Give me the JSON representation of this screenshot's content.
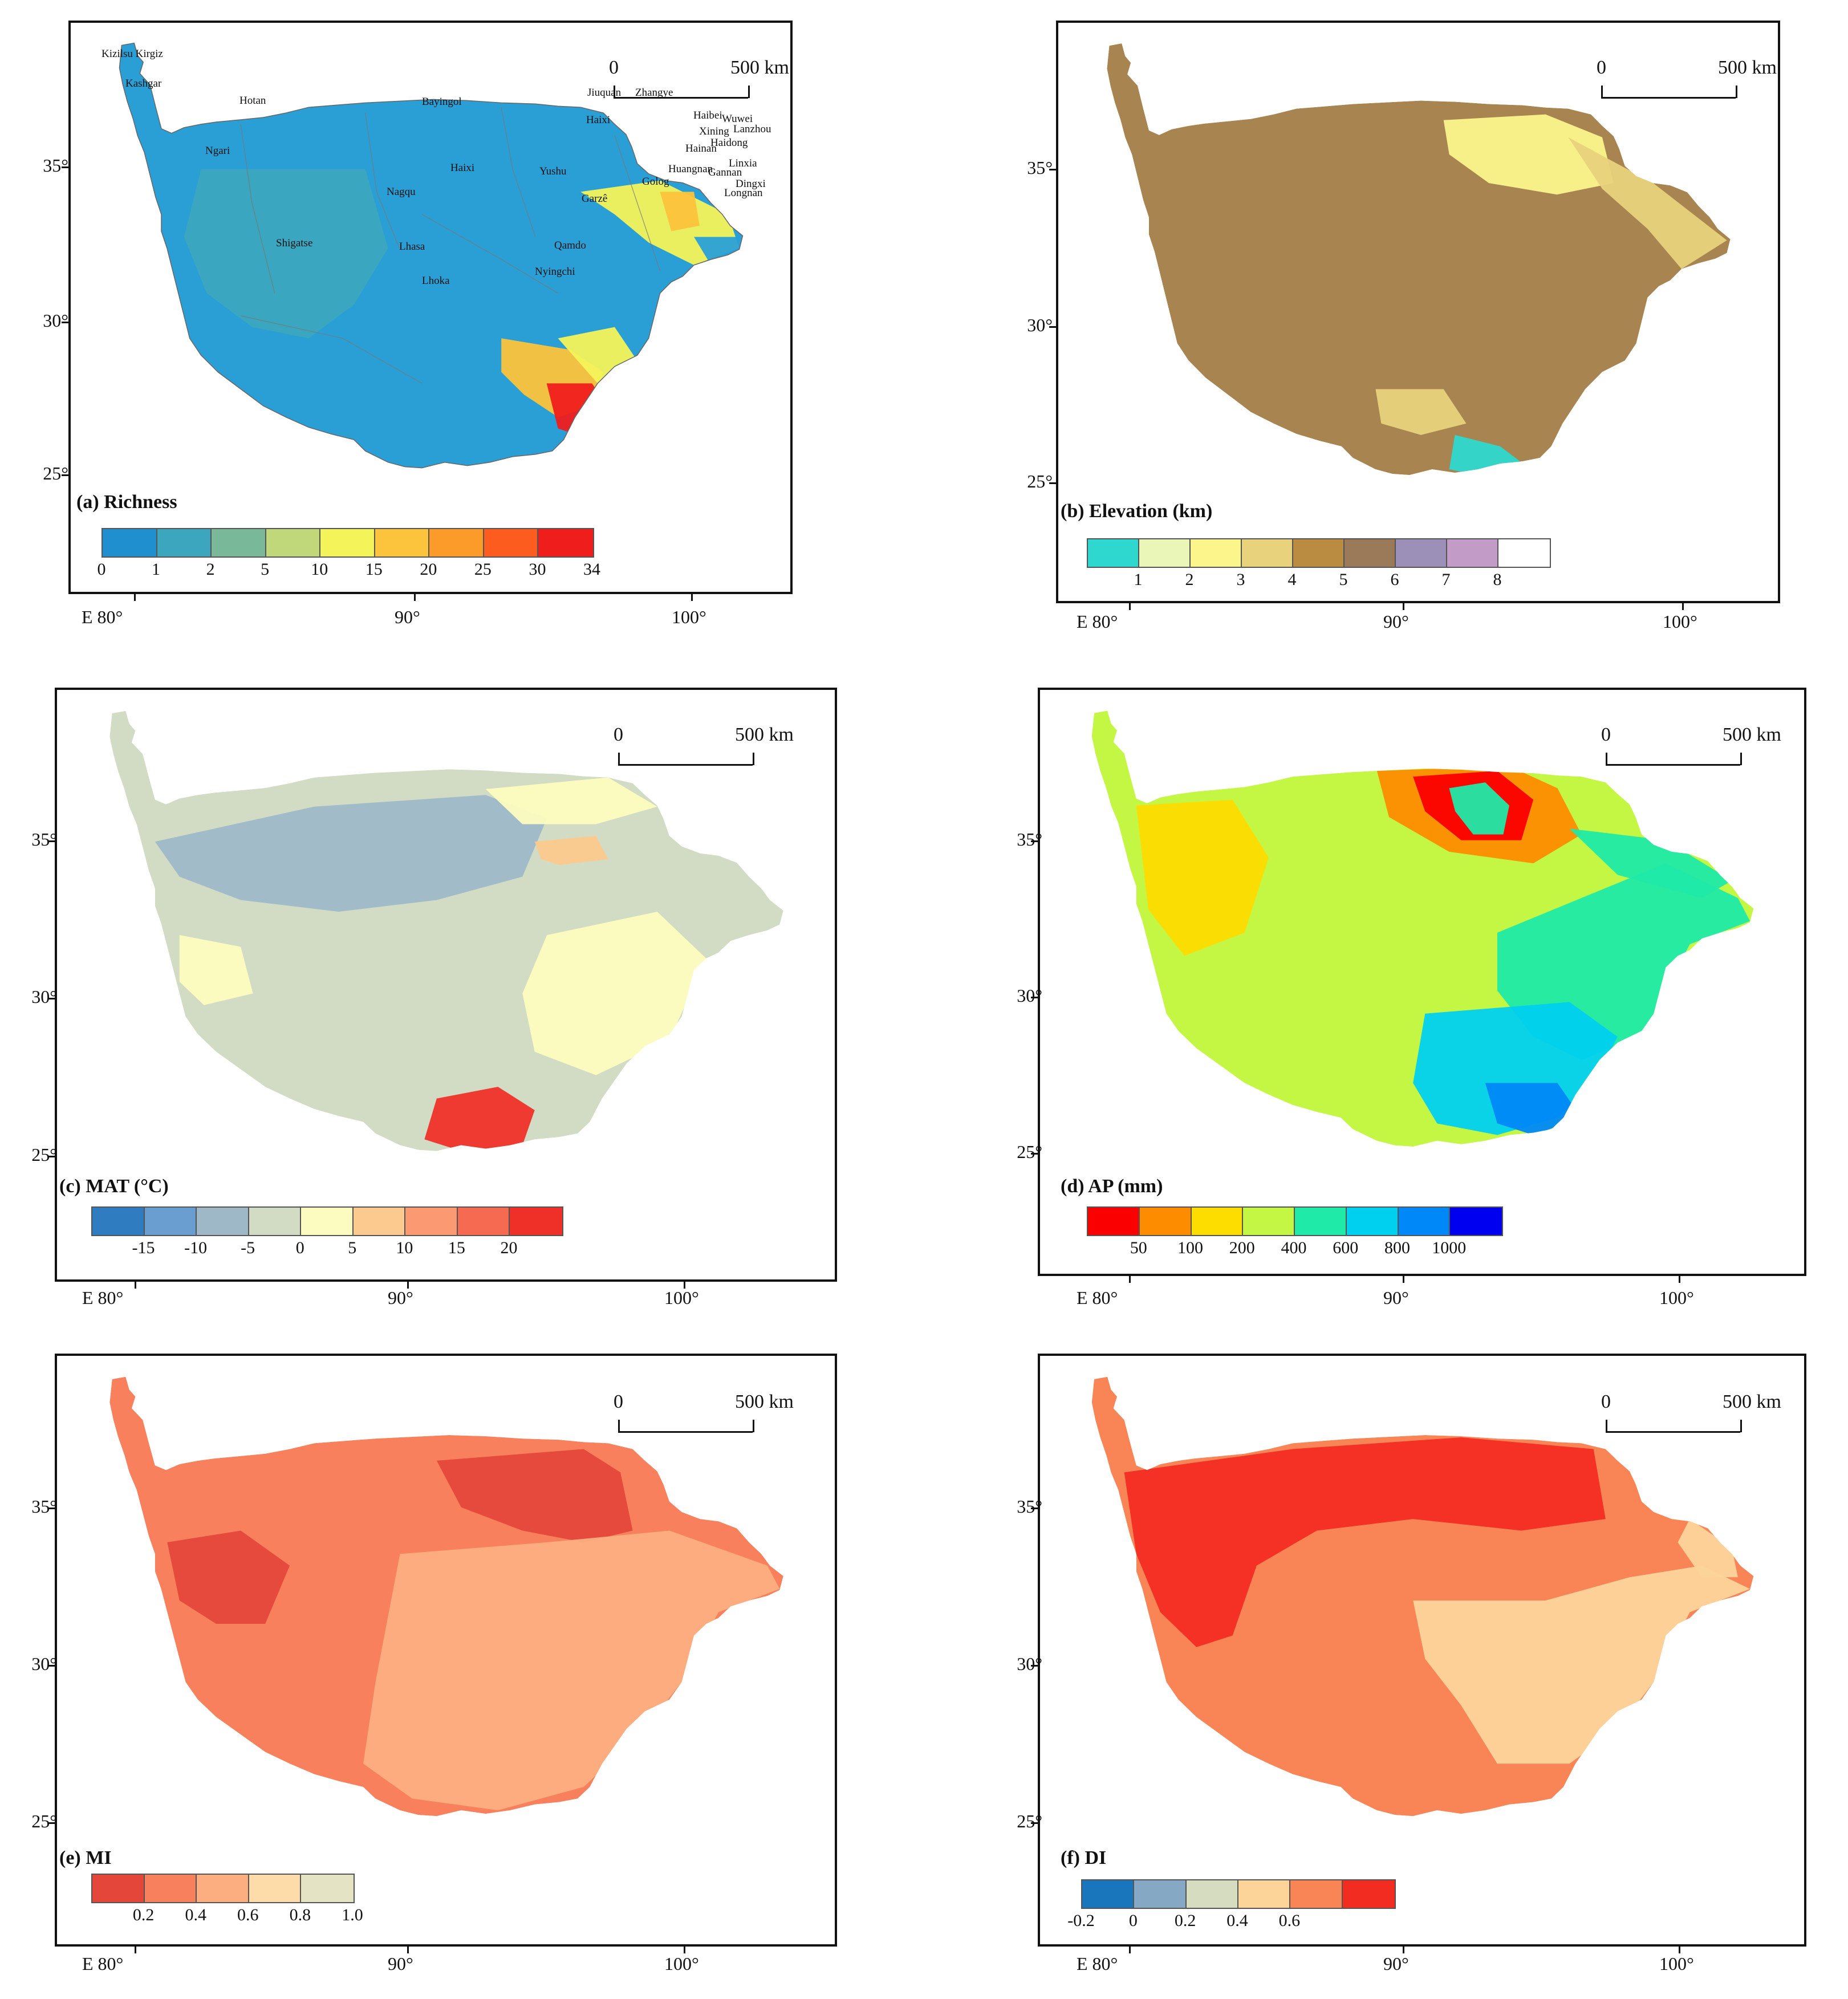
{
  "scale_bar": {
    "zero": "0",
    "distance": "500 km"
  },
  "lat_labels": [
    "35°",
    "30°",
    "25°"
  ],
  "lon_labels": [
    "E 80°",
    "90°",
    "100°"
  ],
  "panels": [
    {
      "id": "a",
      "title": "(a) Richness",
      "legend_colors": [
        "#1f8fd0",
        "#3ca6be",
        "#7ab89a",
        "#c0d87a",
        "#f4f35a",
        "#fcc33c",
        "#fc9a2a",
        "#fc5c1e",
        "#f01d1d"
      ],
      "legend_labels": [
        "0",
        "1",
        "2",
        "5",
        "10",
        "15",
        "20",
        "25",
        "30",
        "34"
      ],
      "map_colors": [
        "#2a9fd6",
        "#3ca6be",
        "#7ab89a",
        "#c0d87a",
        "#f4f35a",
        "#fcc33c",
        "#fc5c1e",
        "#f01d1d"
      ],
      "place_labels": [
        "Kizilsu Kirgiz",
        "Kashgar",
        "Hotan",
        "Bayingol",
        "Jiuquan",
        "Zhangye",
        "Haixi",
        "Haibei",
        "Wuwei",
        "Lanzhou",
        "Xining",
        "Haidong",
        "Hainan",
        "Linxia",
        "Huangnan",
        "Gannan",
        "Dingxi",
        "Longnan",
        "Golog",
        "Ngari",
        "Haixi",
        "Yushu",
        "Nagqu",
        "Garzê",
        "Shigatse",
        "Lhasa",
        "Qamdo",
        "Nyingchi",
        "Lhoka"
      ]
    },
    {
      "id": "b",
      "title": "(b) Elevation (km)",
      "legend_colors": [
        "#2ed8cf",
        "#e9f6b8",
        "#fbf58c",
        "#e8d27c",
        "#b98c42",
        "#9b7a5a",
        "#9c8fb8",
        "#c29cc6",
        "#ffffff"
      ],
      "legend_labels": [
        "1",
        "2",
        "3",
        "4",
        "5",
        "6",
        "7",
        "8"
      ],
      "map_colors": [
        "#a88550",
        "#b98c42",
        "#e8d27c",
        "#fbf58c",
        "#2ed8cf",
        "#9c8fb8"
      ]
    },
    {
      "id": "c",
      "title": "(c) MAT (°C)",
      "legend_colors": [
        "#2f7cc0",
        "#6a9ed0",
        "#9fb8c8",
        "#d2dcc4",
        "#fdfcc0",
        "#fcc98e",
        "#fb9a72",
        "#f66a52",
        "#ef3029"
      ],
      "legend_labels": [
        "-15",
        "-10",
        "-5",
        "0",
        "5",
        "10",
        "15",
        "20"
      ],
      "map_colors": [
        "#d2dcc4",
        "#9fb8c8",
        "#fdfcc0",
        "#fcc98e",
        "#ef3029"
      ]
    },
    {
      "id": "d",
      "title": "(d) AP (mm)",
      "legend_colors": [
        "#fb0000",
        "#fd8c00",
        "#fddc00",
        "#c4f744",
        "#20eaa8",
        "#00d0f0",
        "#0088f8",
        "#0000f0"
      ],
      "legend_labels": [
        "50",
        "100",
        "200",
        "400",
        "600",
        "800",
        "1000"
      ],
      "map_colors": [
        "#c4f744",
        "#fddc00",
        "#fd8c00",
        "#fb0000",
        "#20eaa8",
        "#00d0f0",
        "#0088f8"
      ]
    },
    {
      "id": "e",
      "title": "(e) MI",
      "legend_colors": [
        "#e4473a",
        "#f8805c",
        "#fcae80",
        "#fddcaa",
        "#e4e4c4"
      ],
      "legend_labels": [
        "0.2",
        "0.4",
        "0.6",
        "0.8",
        "1.0"
      ],
      "map_colors": [
        "#f8805c",
        "#e4473a",
        "#fcae80"
      ]
    },
    {
      "id": "f",
      "title": "(f) DI",
      "legend_colors": [
        "#1a76bc",
        "#85a9c4",
        "#d6dcc0",
        "#fcd49a",
        "#f98456",
        "#f32c22"
      ],
      "legend_labels": [
        "-0.2",
        "0",
        "0.2",
        "0.4",
        "0.6"
      ],
      "map_colors": [
        "#f98456",
        "#f32c22",
        "#fcd49a"
      ]
    }
  ]
}
